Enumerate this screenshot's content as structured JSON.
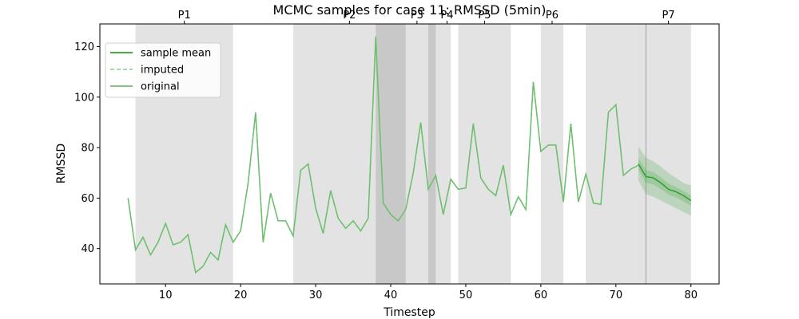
{
  "chart_data": {
    "type": "line",
    "title": "MCMC samples for case 11: RMSSD (5min)",
    "xlabel": "Timestep",
    "ylabel": "RMSSD",
    "xlim": [
      1.25,
      83.75
    ],
    "ylim": [
      26,
      129
    ],
    "xticks": [
      10,
      20,
      30,
      40,
      50,
      60,
      70,
      80
    ],
    "yticks": [
      40,
      60,
      80,
      100,
      120
    ],
    "legend": {
      "placement": "top-left",
      "entries": [
        {
          "label": "sample mean",
          "style": "solid",
          "color": "#2ca02c"
        },
        {
          "label": "imputed",
          "style": "dashed",
          "color": "#98d698"
        },
        {
          "label": "original",
          "style": "solid",
          "color": "#6cbf6c"
        }
      ]
    },
    "series": [
      {
        "name": "original",
        "x": [
          5,
          6,
          7,
          8,
          9,
          10,
          11,
          12,
          13,
          14,
          15,
          16,
          17,
          18,
          19,
          20,
          21,
          22,
          23,
          24,
          25,
          26,
          27,
          28,
          29,
          30,
          31,
          32,
          33,
          34,
          35,
          36,
          37,
          38,
          39,
          40,
          41,
          42,
          43,
          44,
          45,
          46,
          47,
          48,
          49,
          50,
          51,
          52,
          53,
          54,
          55,
          56,
          57,
          58,
          59,
          60,
          61,
          62,
          63,
          64,
          65,
          66,
          67,
          68,
          69,
          70,
          71,
          72,
          73
        ],
        "y": [
          60,
          39.5,
          44.5,
          37.5,
          42.5,
          50,
          41.5,
          42.5,
          45.5,
          30.5,
          33,
          38.5,
          35.5,
          49.5,
          42.5,
          47,
          66,
          94,
          42.5,
          62,
          51,
          51,
          45,
          71,
          73.5,
          56,
          46,
          63,
          52,
          48,
          51,
          47,
          52,
          124,
          58,
          53.5,
          51,
          55.5,
          70,
          90,
          63.5,
          69,
          53.5,
          67.5,
          63.5,
          64,
          89.5,
          68,
          63.5,
          61,
          73,
          53.5,
          60.5,
          55.5,
          106,
          78.5,
          81,
          81,
          58.5,
          89.5,
          58.5,
          69.5,
          58,
          57.5,
          94,
          97,
          69,
          71.5,
          73
        ]
      },
      {
        "name": "sample mean",
        "x": [
          73,
          74,
          75,
          76,
          77,
          78,
          79,
          80
        ],
        "y": [
          73.5,
          68.5,
          68,
          66,
          63.5,
          62.5,
          61,
          59
        ],
        "band_upper": [
          80.5,
          76,
          74.5,
          72.5,
          70,
          68,
          66,
          65
        ],
        "band_lower": [
          67,
          61.5,
          60.5,
          59,
          57.5,
          56,
          54.5,
          53
        ]
      }
    ],
    "shaded_regions": [
      {
        "label": "P1",
        "x0": 6,
        "x1": 19
      },
      {
        "label": "",
        "x0": 27,
        "x1": 38
      },
      {
        "label": "P2",
        "x0": 38,
        "x1": 42
      },
      {
        "label": "P3",
        "x0": 42,
        "x1": 45
      },
      {
        "label": "P4",
        "x0": 45,
        "x1": 48
      },
      {
        "label": "P5",
        "x0": 49,
        "x1": 56
      },
      {
        "label": "P6",
        "x0": 60,
        "x1": 63
      },
      {
        "label": "",
        "x0": 66,
        "x1": 74
      },
      {
        "label": "P7",
        "x0": 74,
        "x1": 80
      }
    ],
    "dark_regions": [
      {
        "x0": 38,
        "x1": 42
      },
      {
        "x0": 45,
        "x1": 46
      }
    ],
    "vertical_lines": [
      74
    ],
    "top_ticks": [
      {
        "label": "P1",
        "x": 12.5
      },
      {
        "label": "P2",
        "x": 34.5
      },
      {
        "label": "P3",
        "x": 43.5
      },
      {
        "label": "P4",
        "x": 47.5
      },
      {
        "label": "P5",
        "x": 52.5
      },
      {
        "label": "P6",
        "x": 61.5
      },
      {
        "label": "P7",
        "x": 77
      }
    ]
  }
}
